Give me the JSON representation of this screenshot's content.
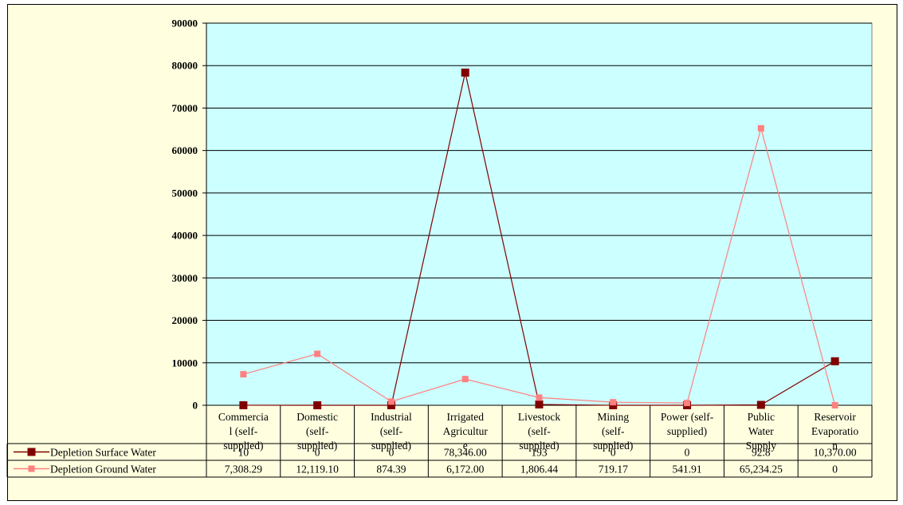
{
  "chart_data": {
    "type": "line",
    "title": "",
    "xlabel": "",
    "ylabel": "",
    "ylim": [
      0,
      90000
    ],
    "yticks": [
      "0",
      "10000",
      "20000",
      "30000",
      "40000",
      "50000",
      "60000",
      "70000",
      "80000",
      "90000"
    ],
    "categories": [
      [
        "Commercia",
        "l (self-",
        "supplied)"
      ],
      [
        "Domestic",
        "(self-",
        "supplied)"
      ],
      [
        "Industrial",
        "(self-",
        "supplied)"
      ],
      [
        "Irrigated",
        "Agricultur",
        "e"
      ],
      [
        "Livestock",
        "(self-",
        "supplied)"
      ],
      [
        "Mining",
        "(self-",
        "supplied)"
      ],
      [
        "Power (self-",
        "supplied)"
      ],
      [
        "Public",
        "Water",
        "Supply"
      ],
      [
        "Reservoir",
        "Evaporatio",
        "n"
      ]
    ],
    "series": [
      {
        "name": "Depletion Surface Water",
        "color": "#800000",
        "values": [
          10,
          0,
          0,
          78346,
          193,
          0,
          0,
          92.8,
          10370
        ],
        "labels": [
          "10",
          "0",
          "0",
          "78,346.00",
          "193",
          "0",
          "0",
          "92.8",
          "10,370.00"
        ]
      },
      {
        "name": "Depletion Ground Water",
        "color": "#ff8080",
        "values": [
          7308.29,
          12119.1,
          874.39,
          6172.0,
          1806.44,
          719.17,
          541.91,
          65234.25,
          0
        ],
        "labels": [
          "7,308.29",
          "12,119.10",
          "874.39",
          "6,172.00",
          "1,806.44",
          "719.17",
          "541.91",
          "65,234.25",
          "0"
        ]
      }
    ],
    "grid": true,
    "plot_background": "#ccffff",
    "chart_background": "#ffffe0",
    "legend_placement": "data-table"
  }
}
